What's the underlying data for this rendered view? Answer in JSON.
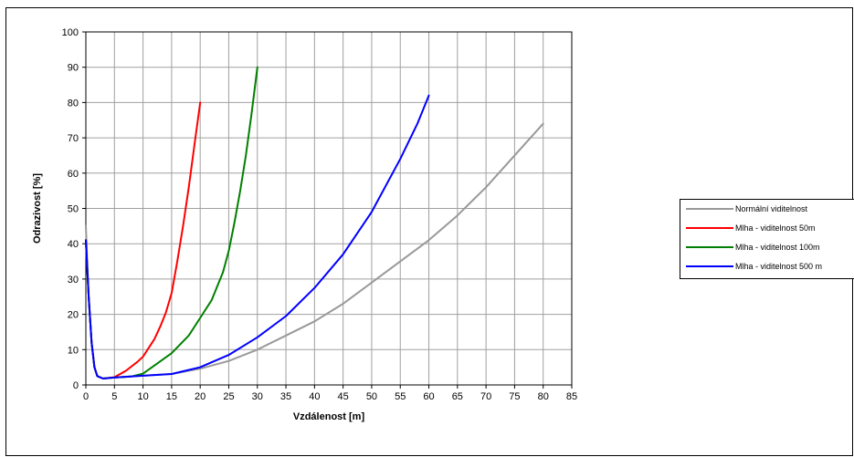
{
  "chart_data": {
    "type": "line",
    "title": "",
    "xlabel": "Vzdálenost [m]",
    "ylabel": "Odrazivost [%]",
    "xlim": [
      0,
      85
    ],
    "ylim": [
      0,
      100
    ],
    "xticks": [
      0,
      5,
      10,
      15,
      20,
      25,
      30,
      35,
      40,
      45,
      50,
      55,
      60,
      65,
      70,
      75,
      80,
      85
    ],
    "yticks": [
      0,
      10,
      20,
      30,
      40,
      50,
      60,
      70,
      80,
      90,
      100
    ],
    "grid": true,
    "legend_position": "right",
    "series": [
      {
        "name": "Normální viditelnost",
        "color": "#999999",
        "points": [
          [
            0,
            45
          ],
          [
            0.5,
            25
          ],
          [
            1,
            12
          ],
          [
            1.5,
            5
          ],
          [
            2,
            2.5
          ],
          [
            3,
            1.8
          ],
          [
            5,
            2.1
          ],
          [
            10,
            2.6
          ],
          [
            15,
            3.1
          ],
          [
            20,
            4.6
          ],
          [
            25,
            6.8
          ],
          [
            30,
            10
          ],
          [
            35,
            14
          ],
          [
            40,
            18
          ],
          [
            45,
            23
          ],
          [
            50,
            29
          ],
          [
            55,
            35
          ],
          [
            60,
            41
          ],
          [
            65,
            48
          ],
          [
            70,
            56
          ],
          [
            75,
            65
          ],
          [
            80,
            74
          ]
        ]
      },
      {
        "name": "Mlha - viditelnost 50m",
        "color": "#ff0000",
        "points": [
          [
            0,
            41
          ],
          [
            0.5,
            25
          ],
          [
            1,
            12
          ],
          [
            1.5,
            5
          ],
          [
            2,
            2.5
          ],
          [
            3,
            1.8
          ],
          [
            5,
            2.2
          ],
          [
            7,
            4
          ],
          [
            9,
            6.5
          ],
          [
            10,
            8
          ],
          [
            11,
            10.5
          ],
          [
            12,
            13
          ],
          [
            13,
            16.5
          ],
          [
            14,
            20.5
          ],
          [
            15,
            26
          ],
          [
            16,
            35
          ],
          [
            17,
            45
          ],
          [
            18,
            56
          ],
          [
            19,
            68
          ],
          [
            20,
            80
          ]
        ]
      },
      {
        "name": "Mlha - viditelnost 100m",
        "color": "#008000",
        "points": [
          [
            0,
            41
          ],
          [
            0.5,
            25
          ],
          [
            1,
            12
          ],
          [
            1.5,
            5
          ],
          [
            2,
            2.5
          ],
          [
            3,
            1.8
          ],
          [
            5,
            2.1
          ],
          [
            8,
            2.4
          ],
          [
            10,
            3.2
          ],
          [
            12,
            5.5
          ],
          [
            15,
            9
          ],
          [
            18,
            14
          ],
          [
            20,
            19
          ],
          [
            22,
            24
          ],
          [
            24,
            32
          ],
          [
            25,
            38
          ],
          [
            26,
            46
          ],
          [
            27,
            55
          ],
          [
            28,
            65
          ],
          [
            29,
            77
          ],
          [
            30,
            90
          ]
        ]
      },
      {
        "name": "Mlha - viditelnost 500 m",
        "color": "#0000ff",
        "points": [
          [
            0,
            41
          ],
          [
            0.5,
            25
          ],
          [
            1,
            12
          ],
          [
            1.5,
            5
          ],
          [
            2,
            2.5
          ],
          [
            3,
            1.8
          ],
          [
            5,
            2.1
          ],
          [
            10,
            2.6
          ],
          [
            15,
            3.1
          ],
          [
            20,
            5
          ],
          [
            25,
            8.5
          ],
          [
            30,
            13.5
          ],
          [
            35,
            19.5
          ],
          [
            40,
            27.5
          ],
          [
            45,
            37
          ],
          [
            50,
            49
          ],
          [
            55,
            64
          ],
          [
            58,
            74
          ],
          [
            60,
            82
          ]
        ]
      }
    ]
  }
}
